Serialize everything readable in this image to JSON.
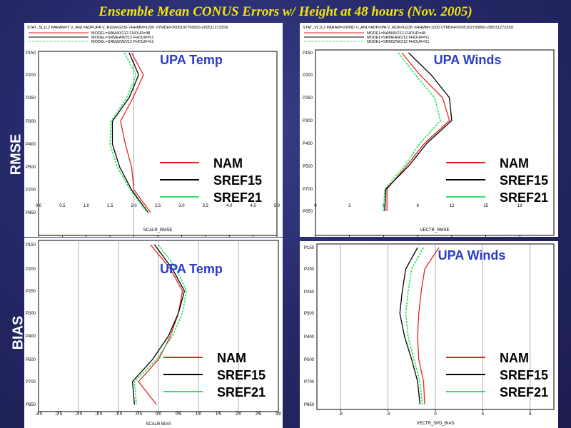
{
  "title": "Ensemble Mean  CONUS Errors w/ Height at 48 hours (Nov. 2005)",
  "row_labels": {
    "rmse": "RMSE",
    "bias": "BIAS"
  },
  "legend": [
    "NAM",
    "SREF15",
    "SREF21"
  ],
  "colors": {
    "NAM": "#e0261b",
    "SREF15": "#000000",
    "SREF21": "#2ee36a",
    "panel_title": "#2a3cc8"
  },
  "chart_data": [
    {
      "type": "line",
      "title": "UPA Temp",
      "header": "STAT_SL1L2 PARAM=T V_ANL=ADPUPA V_RGN=G236 VHHMM=1200 VYMDH=2005102700000-2005112723S9",
      "model_lines": [
        "MODEL=NAM40/212 FHOUR=48",
        "MODEL=SRMEAN/212 FHOUR=51",
        "MODEL=SRM32W/212 FHOUR=51"
      ],
      "xlabel": "SCALR_RMSE",
      "xlim": [
        0,
        5
      ],
      "xticks": [
        "0.0",
        "0.5",
        "1.0",
        "1.5",
        "2.0",
        "2.5",
        "3.0",
        "3.5",
        "4.0",
        "4.5",
        "5.0"
      ],
      "levels": [
        "P150",
        "P200",
        "P250",
        "P300",
        "P400",
        "P500",
        "P700",
        "P850"
      ],
      "grid_x": [
        2.0
      ],
      "series": [
        {
          "name": "NAM",
          "values": [
            1.95,
            2.2,
            1.98,
            1.72,
            1.82,
            1.95,
            2.0,
            2.35
          ]
        },
        {
          "name": "SREF15",
          "values": [
            1.9,
            2.1,
            1.9,
            1.55,
            1.55,
            1.7,
            1.95,
            2.3
          ]
        },
        {
          "name": "SREF21",
          "values": [
            1.8,
            2.05,
            1.85,
            1.52,
            1.5,
            1.65,
            1.92,
            2.28
          ]
        }
      ]
    },
    {
      "type": "line",
      "title": "UPA Winds",
      "header": "STAT_VL1L2 PARAM=VWND V_ANL=ADPUPA V_RGN=G236 VHHMM=1200 VYMDH=2005102700000-2005112723S9",
      "model_lines": [
        "MODEL=NAM40/212 FHOUR=48",
        "MODEL=SRMEAN/212 FHOUR=51",
        "MODEL=SRM32W/212 FHOUR=51"
      ],
      "xlabel": "VECTR_RMSE",
      "xlim": [
        0,
        21
      ],
      "xticks": [
        "0",
        "3",
        "6",
        "9",
        "12",
        "15",
        "18"
      ],
      "levels": [
        "P150",
        "P200",
        "P250",
        "P300",
        "P400",
        "P500",
        "P700",
        "P850"
      ],
      "grid_x": [],
      "series": [
        {
          "name": "NAM",
          "values": [
            7.6,
            9.2,
            11.2,
            11.8,
            9.6,
            8.0,
            6.3,
            6.3
          ]
        },
        {
          "name": "SREF15",
          "values": [
            8.2,
            10.2,
            11.8,
            12.0,
            9.8,
            8.2,
            6.2,
            6.1
          ]
        },
        {
          "name": "SREF21",
          "values": [
            7.3,
            8.8,
            10.5,
            11.0,
            9.2,
            7.8,
            6.1,
            6.0
          ]
        }
      ]
    },
    {
      "type": "line",
      "title": "UPA Temp",
      "xlabel": "SCALR BIAS",
      "xlim": [
        -3,
        3
      ],
      "xticks": [
        "-3.0",
        "-2.5",
        "-2.0",
        "-1.5",
        "-1.0",
        "-0.5",
        "0.0",
        "0.5",
        "1.0",
        "1.5",
        "2.0",
        "2.5",
        "3.0"
      ],
      "levels": [
        "P150",
        "P200",
        "P250",
        "P300",
        "P400",
        "P500",
        "P700",
        "P850"
      ],
      "grid_x": [
        -2.0,
        -1.0,
        0.0,
        1.0,
        2.0
      ],
      "series": [
        {
          "name": "NAM",
          "values": [
            -0.2,
            0.3,
            0.6,
            0.5,
            0.3,
            0.0,
            -0.5,
            -0.05
          ]
        },
        {
          "name": "SREF15",
          "values": [
            -0.1,
            0.35,
            0.65,
            0.5,
            0.25,
            -0.15,
            -0.65,
            -0.6
          ]
        },
        {
          "name": "SREF21",
          "values": [
            0.0,
            0.45,
            0.7,
            0.6,
            0.35,
            -0.05,
            -0.6,
            -0.55
          ]
        }
      ]
    },
    {
      "type": "line",
      "title": "UPA Winds",
      "xlabel": "VECTR_SPD_BIAS",
      "xlim": [
        -10,
        10
      ],
      "xticks": [
        "-8",
        "-4",
        "0",
        "4",
        "8"
      ],
      "levels": [
        "P150",
        "P200",
        "P250",
        "P300",
        "P400",
        "P500",
        "P700",
        "P850"
      ],
      "grid_x": [
        -8,
        -4,
        0,
        4,
        8
      ],
      "series": [
        {
          "name": "NAM",
          "values": [
            0.3,
            -0.9,
            -1.2,
            -1.4,
            -1.5,
            -1.4,
            -1.0,
            -0.9
          ]
        },
        {
          "name": "SREF15",
          "values": [
            -1.5,
            -2.5,
            -2.8,
            -3.0,
            -2.6,
            -2.0,
            -1.5,
            -1.3
          ]
        },
        {
          "name": "SREF21",
          "values": [
            -1.0,
            -2.0,
            -2.3,
            -2.5,
            -2.3,
            -1.8,
            -1.3,
            -1.1
          ]
        }
      ]
    }
  ]
}
